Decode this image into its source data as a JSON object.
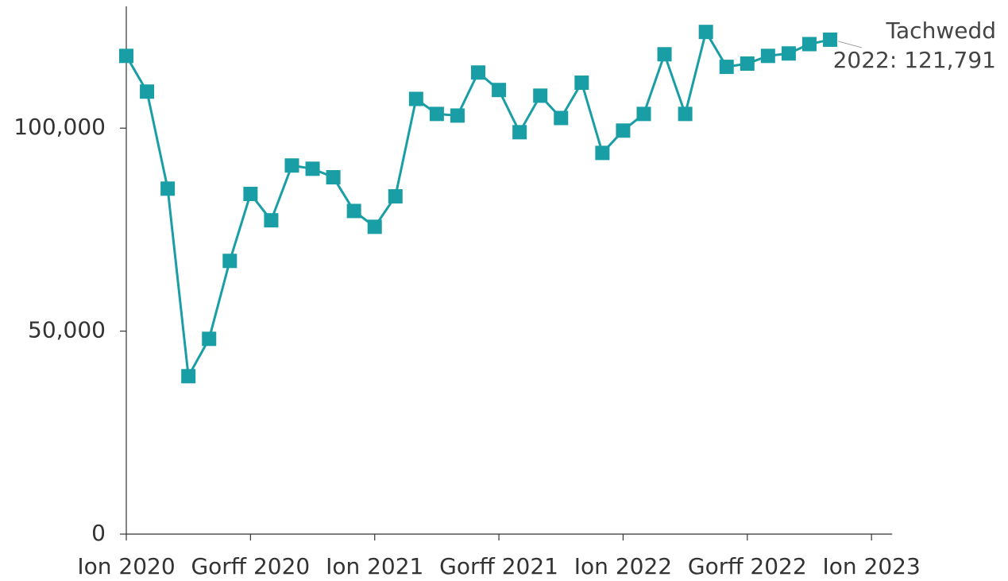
{
  "chart_data": {
    "type": "line",
    "x": [
      "2020-01",
      "2020-02",
      "2020-03",
      "2020-04",
      "2020-05",
      "2020-06",
      "2020-07",
      "2020-08",
      "2020-09",
      "2020-10",
      "2020-11",
      "2020-12",
      "2021-01",
      "2021-02",
      "2021-03",
      "2021-04",
      "2021-05",
      "2021-06",
      "2021-07",
      "2021-08",
      "2021-09",
      "2021-10",
      "2021-11",
      "2021-12",
      "2022-01",
      "2022-02",
      "2022-03",
      "2022-04",
      "2022-05",
      "2022-06",
      "2022-07",
      "2022-08",
      "2022-09",
      "2022-10",
      "2022-11"
    ],
    "series": [
      {
        "color": "#1a9ea5",
        "values": [
          117800,
          109000,
          85100,
          38900,
          48100,
          67300,
          83800,
          77300,
          90800,
          90000,
          87900,
          79600,
          75700,
          83200,
          107200,
          103500,
          103100,
          113700,
          109400,
          99000,
          108000,
          102500,
          111200,
          93900,
          99400,
          103500,
          118200,
          103500,
          123700,
          115100,
          115900,
          117800,
          118400,
          120700,
          121791
        ]
      }
    ],
    "xlim": [
      "2020-01",
      "2023-02"
    ],
    "xticks": [
      {
        "value": "2020-01",
        "label": "Ion 2020"
      },
      {
        "value": "2020-07",
        "label": "Gorff 2020"
      },
      {
        "value": "2021-01",
        "label": "Ion 2021"
      },
      {
        "value": "2021-07",
        "label": "Gorff 2021"
      },
      {
        "value": "2022-01",
        "label": "Ion 2022"
      },
      {
        "value": "2022-07",
        "label": "Gorff 2022"
      },
      {
        "value": "2023-01",
        "label": "Ion 2023"
      }
    ],
    "ylim": [
      0,
      130000
    ],
    "yticks": [
      0,
      {
        "value": 50000,
        "label": "50,000"
      },
      {
        "value": 100000,
        "label": "100,000"
      }
    ],
    "annotation": [
      "Tachwedd",
      "2022: 121,791"
    ]
  }
}
